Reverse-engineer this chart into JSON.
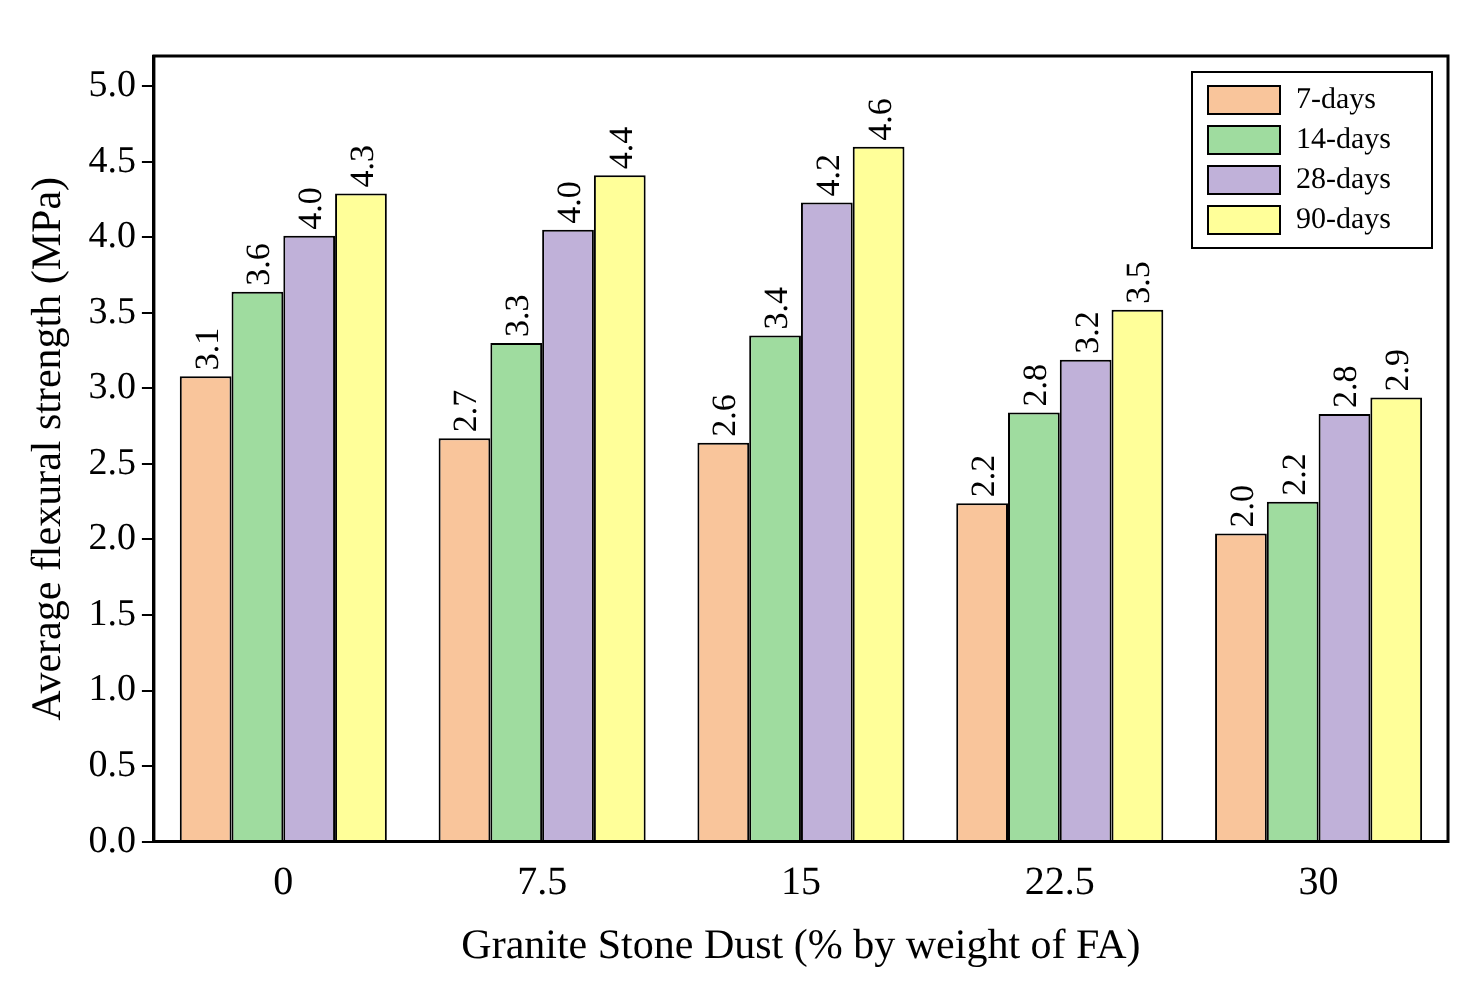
{
  "chart_data": {
    "type": "bar",
    "xlabel": "Granite Stone Dust (% by weight of FA)",
    "ylabel": "Average flexural strength (MPa)",
    "categories": [
      "0",
      "7.5",
      "15",
      "22.5",
      "30"
    ],
    "series": [
      {
        "name": "7-days",
        "color": "#f9c59b",
        "values": [
          3.08,
          2.67,
          2.64,
          2.24,
          2.04
        ],
        "value_labels": [
          "3.1",
          "2.7",
          "2.6",
          "2.2",
          "2.0"
        ]
      },
      {
        "name": "14-days",
        "color": "#9fdc9f",
        "values": [
          3.64,
          3.3,
          3.35,
          2.84,
          2.25
        ],
        "value_labels": [
          "3.6",
          "3.3",
          "3.4",
          "2.8",
          "2.2"
        ]
      },
      {
        "name": "28-days",
        "color": "#c0b1d9",
        "values": [
          4.01,
          4.05,
          4.23,
          3.19,
          2.83
        ],
        "value_labels": [
          "4.0",
          "4.0",
          "4.2",
          "3.2",
          "2.8"
        ]
      },
      {
        "name": "90-days",
        "color": "#ffff99",
        "values": [
          4.29,
          4.41,
          4.6,
          3.52,
          2.94
        ],
        "value_labels": [
          "4.3",
          "4.4",
          "4.6",
          "3.5",
          "2.9"
        ]
      }
    ],
    "ylim": [
      0,
      5.2
    ],
    "yticks": [
      {
        "value": 0,
        "label": "0.0"
      },
      0.5,
      {
        "value": 1,
        "label": "1.0"
      },
      1.5,
      {
        "value": 2,
        "label": "2.0"
      },
      2.5,
      {
        "value": 3,
        "label": "3.0"
      },
      3.5,
      {
        "value": 4,
        "label": "4.0"
      },
      4.5,
      {
        "value": 5,
        "label": "5.0"
      }
    ],
    "grid": false,
    "legend": "top right"
  }
}
